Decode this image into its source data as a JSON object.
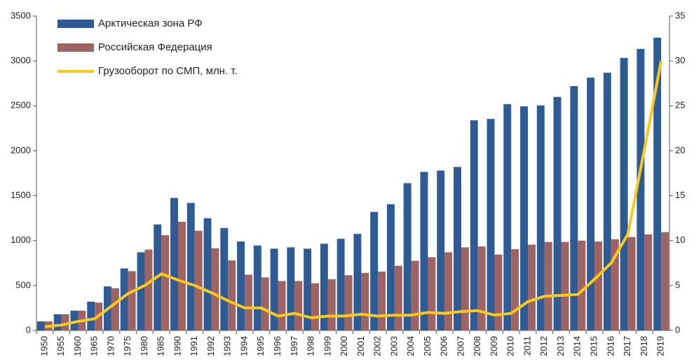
{
  "chart_data": {
    "type": "bar",
    "categories": [
      "1950",
      "1955",
      "1960",
      "1965",
      "1970",
      "1975",
      "1980",
      "1985",
      "1990",
      "1991",
      "1992",
      "1993",
      "1994",
      "1995",
      "1996",
      "1997",
      "1998",
      "1999",
      "2000",
      "2001",
      "2002",
      "2003",
      "2004",
      "2005",
      "2006",
      "2007",
      "2008",
      "2009",
      "2010",
      "2011",
      "2012",
      "2013",
      "2014",
      "2015",
      "2016",
      "2017",
      "2018",
      "2019"
    ],
    "series": [
      {
        "name": "Арктическая зона РФ",
        "type": "bar",
        "color": "#2f5b94",
        "values": [
          100,
          180,
          220,
          320,
          490,
          690,
          870,
          1180,
          1475,
          1420,
          1250,
          1140,
          990,
          945,
          910,
          925,
          910,
          965,
          1020,
          1075,
          1320,
          1405,
          1640,
          1765,
          1780,
          1820,
          2340,
          2355,
          2520,
          2495,
          2505,
          2600,
          2720,
          2815,
          2870,
          3035,
          3135,
          3260
        ]
      },
      {
        "name": "Российская Федерация",
        "type": "bar",
        "color": "#9e6464",
        "values": [
          100,
          180,
          220,
          310,
          470,
          660,
          900,
          1060,
          1210,
          1110,
          915,
          780,
          620,
          590,
          550,
          550,
          525,
          570,
          615,
          640,
          655,
          720,
          775,
          815,
          870,
          925,
          935,
          845,
          905,
          955,
          985,
          985,
          1000,
          990,
          1015,
          1040,
          1070,
          1095
        ]
      },
      {
        "name": "Грузооборот по СМП, млн. т.",
        "type": "line",
        "axis": "y2",
        "color": "#fbc81e",
        "values": [
          0.4,
          0.6,
          1.0,
          1.3,
          2.7,
          4.1,
          5.0,
          6.3,
          5.6,
          5.0,
          4.2,
          3.3,
          2.5,
          2.5,
          1.6,
          1.9,
          1.4,
          1.6,
          1.6,
          1.8,
          1.6,
          1.7,
          1.7,
          2.0,
          1.9,
          2.1,
          2.2,
          1.7,
          1.9,
          3.2,
          3.8,
          3.9,
          4.0,
          5.7,
          7.5,
          10.7,
          20.2,
          30.0
        ]
      }
    ],
    "ylim": [
      0,
      3500
    ],
    "yticks": [
      0,
      500,
      1000,
      1500,
      2000,
      2500,
      3000,
      3500
    ],
    "y2lim": [
      0,
      35
    ],
    "y2ticks": [
      0,
      5,
      10,
      15,
      20,
      25,
      30,
      35
    ],
    "legend": "upper-left",
    "grid": false
  }
}
